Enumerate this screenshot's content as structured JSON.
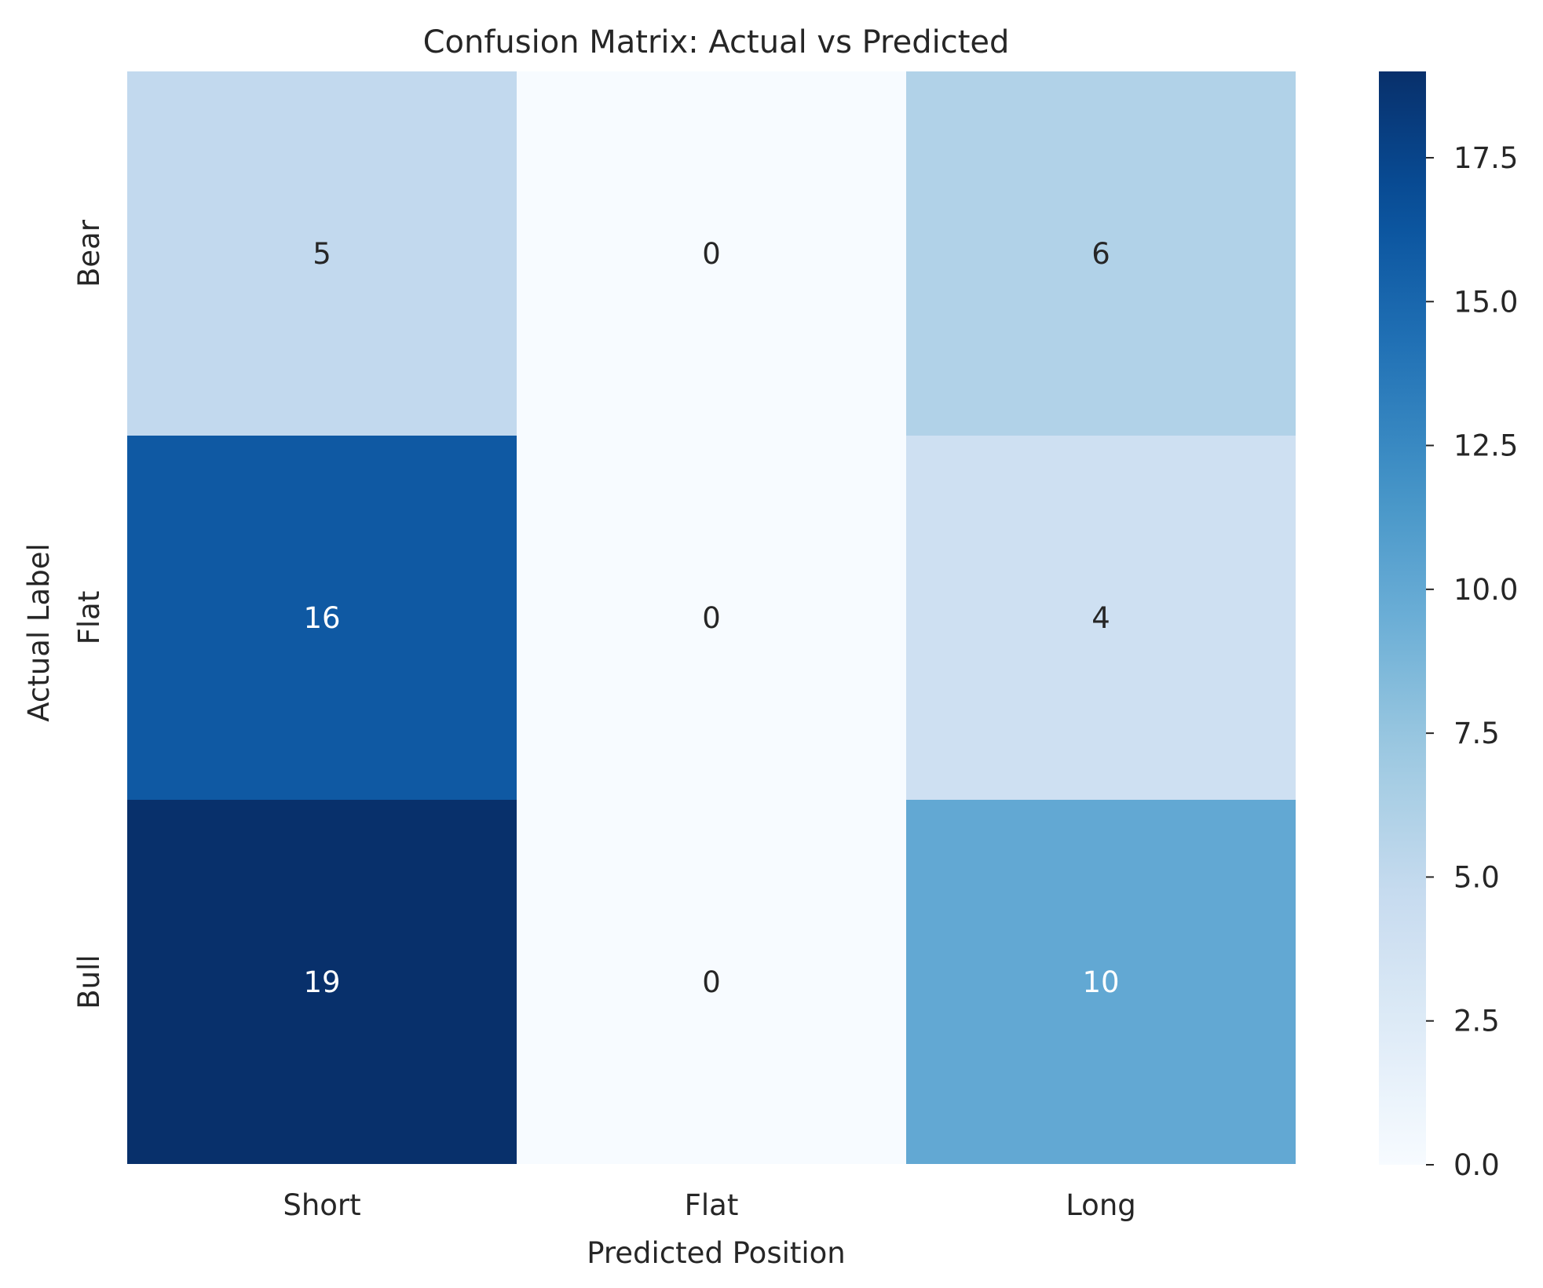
{
  "chart_data": {
    "type": "heatmap",
    "title": "Confusion Matrix: Actual vs Predicted",
    "xlabel": "Predicted Position",
    "ylabel": "Actual Label",
    "x_categories": [
      "Short",
      "Flat",
      "Long"
    ],
    "y_categories": [
      "Bear",
      "Flat",
      "Bull"
    ],
    "values": [
      [
        5,
        0,
        6
      ],
      [
        16,
        0,
        4
      ],
      [
        19,
        0,
        10
      ]
    ],
    "colorbar": {
      "min": 0,
      "max": 19,
      "ticks": [
        "0.0",
        "2.5",
        "5.0",
        "7.5",
        "10.0",
        "12.5",
        "15.0",
        "17.5"
      ],
      "colormap": "Blues"
    },
    "grid": false
  }
}
